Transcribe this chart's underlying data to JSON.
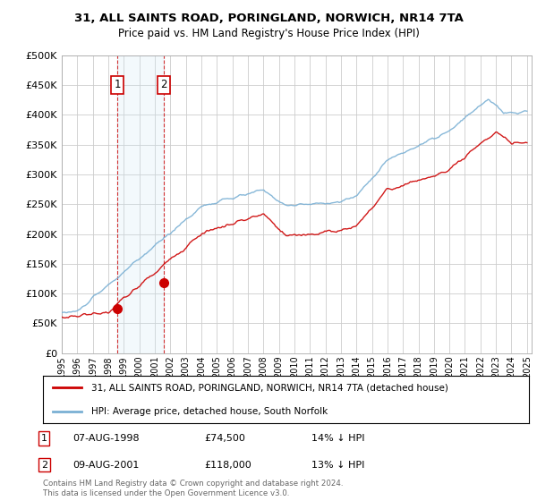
{
  "title": "31, ALL SAINTS ROAD, PORINGLAND, NORWICH, NR14 7TA",
  "subtitle": "Price paid vs. HM Land Registry's House Price Index (HPI)",
  "ylim": [
    0,
    500000
  ],
  "yticks": [
    0,
    50000,
    100000,
    150000,
    200000,
    250000,
    300000,
    350000,
    400000,
    450000,
    500000
  ],
  "ytick_labels": [
    "£0",
    "£50K",
    "£100K",
    "£150K",
    "£200K",
    "£250K",
    "£300K",
    "£350K",
    "£400K",
    "£450K",
    "£500K"
  ],
  "xlim": [
    1995,
    2025
  ],
  "background_color": "#ffffff",
  "grid_color": "#cccccc",
  "sale1": {
    "date": 1998.58,
    "price": 74500,
    "label": "1"
  },
  "sale2": {
    "date": 2001.58,
    "price": 118000,
    "label": "2"
  },
  "legend_line1": "31, ALL SAINTS ROAD, PORINGLAND, NORWICH, NR14 7TA (detached house)",
  "legend_line2": "HPI: Average price, detached house, South Norfolk",
  "table_row1": [
    "1",
    "07-AUG-1998",
    "£74,500",
    "14% ↓ HPI"
  ],
  "table_row2": [
    "2",
    "09-AUG-2001",
    "£118,000",
    "13% ↓ HPI"
  ],
  "footer": "Contains HM Land Registry data © Crown copyright and database right 2024.\nThis data is licensed under the Open Government Licence v3.0.",
  "line_color_red": "#cc0000",
  "line_color_blue": "#7ab0d4",
  "marker_color_red": "#cc0000",
  "sale_box_color": "#cc0000",
  "shaded_color": "#d0e8f5"
}
